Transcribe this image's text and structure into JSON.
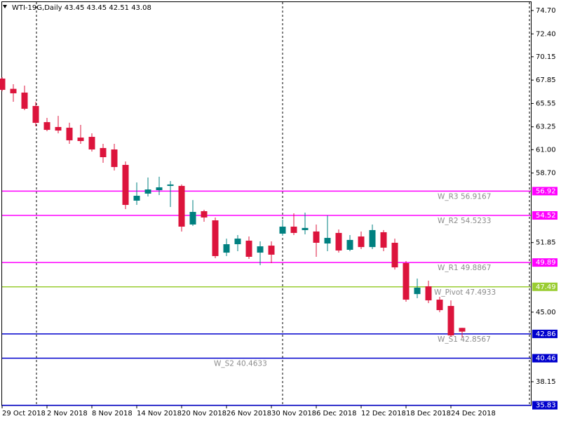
{
  "chart_data": {
    "type": "candlestick",
    "title": "WTI-19G,Daily",
    "categories": [
      "29 Oct 2018",
      null,
      null,
      null,
      "2 Nov 2018",
      null,
      null,
      null,
      "8 Nov 2018",
      null,
      null,
      null,
      "14 Nov 2018",
      null,
      null,
      null,
      "20 Nov 2018",
      null,
      null,
      null,
      "26 Nov 2018",
      null,
      null,
      null,
      "30 Nov 2018",
      null,
      null,
      null,
      "6 Dec 2018",
      null,
      null,
      null,
      "12 Dec 2018",
      null,
      null,
      null,
      "18 Dec 2018",
      null,
      null,
      null,
      "24 Dec 2018",
      null
    ],
    "open": [
      68.0,
      66.99,
      66.62,
      65.3,
      63.71,
      63.23,
      63.16,
      62.19,
      62.26,
      61.16,
      61.02,
      59.5,
      55.98,
      56.67,
      57.01,
      57.43,
      57.43,
      53.63,
      54.94,
      54.04,
      50.86,
      51.69,
      52.04,
      50.86,
      51.55,
      52.73,
      53.42,
      53.08,
      52.94,
      51.76,
      52.8,
      51.14,
      52.45,
      51.41,
      52.87,
      51.83,
      49.83,
      46.78,
      47.54,
      46.23,
      45.61,
      43.45
    ],
    "high": [
      68.14,
      67.45,
      67.31,
      65.72,
      64.13,
      64.33,
      63.65,
      63.44,
      62.61,
      61.57,
      61.57,
      59.84,
      57.77,
      58.26,
      58.33,
      57.91,
      57.57,
      56.04,
      55.08,
      54.32,
      52.24,
      52.59,
      52.45,
      51.97,
      51.97,
      54.11,
      54.73,
      54.8,
      53.63,
      54.52,
      53.14,
      52.59,
      52.94,
      53.63,
      53.08,
      52.24,
      50.03,
      48.31,
      48.1,
      46.51,
      46.16,
      43.45
    ],
    "low": [
      66.75,
      65.72,
      64.89,
      63.3,
      62.82,
      62.61,
      61.57,
      61.57,
      60.81,
      59.71,
      58.95,
      55.15,
      55.56,
      56.39,
      56.53,
      55.35,
      52.94,
      53.49,
      53.9,
      50.31,
      50.52,
      51.0,
      50.24,
      49.62,
      49.83,
      52.52,
      52.59,
      52.66,
      50.45,
      51.0,
      50.86,
      51.0,
      51.21,
      51.21,
      51.0,
      49.2,
      46.03,
      46.37,
      45.89,
      44.99,
      42.57,
      42.51
    ],
    "close": [
      66.89,
      66.55,
      65.03,
      63.64,
      62.95,
      62.88,
      61.92,
      61.85,
      61.02,
      60.26,
      59.29,
      55.56,
      56.46,
      57.08,
      57.29,
      57.57,
      53.42,
      54.87,
      54.32,
      50.52,
      51.69,
      52.24,
      50.45,
      51.48,
      50.66,
      53.42,
      52.8,
      53.29,
      51.83,
      52.31,
      51.07,
      52.11,
      51.41,
      53.08,
      51.35,
      49.41,
      46.23,
      47.41,
      46.16,
      45.2,
      42.71,
      43.08
    ],
    "up_color": "#008080",
    "down_color": "#dc143c",
    "ylim": [
      35.8,
      75.53
    ],
    "yticks": [
      {
        "value": 74.7,
        "label": "74.70"
      },
      {
        "value": 72.4,
        "label": "72.40"
      },
      {
        "value": 70.15,
        "label": "70.15"
      },
      {
        "value": 67.85,
        "label": "67.85"
      },
      {
        "value": 65.55,
        "label": "65.55"
      },
      {
        "value": 63.25,
        "label": "63.25"
      },
      {
        "value": 61,
        "label": "61.00"
      },
      {
        "value": 58.7,
        "label": "58.70"
      },
      {
        "value": 51.85,
        "label": "51.85"
      },
      {
        "value": 45,
        "label": "45.00"
      },
      {
        "value": 38.15,
        "label": "38.15"
      }
    ],
    "levels": [
      {
        "name": "W_R3",
        "value": 56.9167,
        "value_label": "56.92",
        "color": "#ff00ff"
      },
      {
        "name": "W_R2",
        "value": 54.5233,
        "value_label": "54.52",
        "color": "#ff00ff"
      },
      {
        "name": "W_R1",
        "value": 49.8867,
        "value_label": "49.89",
        "color": "#ff00ff"
      },
      {
        "name": "W_Pivot",
        "value": 47.4933,
        "value_label": "47.49",
        "color": "#9acd32"
      },
      {
        "name": "W_S1",
        "value": 42.8567,
        "value_label": "42.86",
        "color": "#0000cd"
      },
      {
        "name": "W_S2",
        "value": 40.4633,
        "value_label": "40.46",
        "color": "#0000cd"
      },
      {
        "value": 35.83,
        "color": "#0000cd"
      }
    ]
  }
}
